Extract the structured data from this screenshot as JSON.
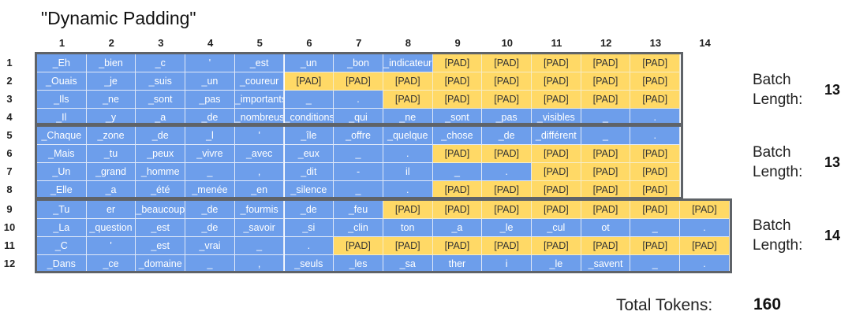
{
  "title": "\"Dynamic Padding\"",
  "column_numbers": [
    "1",
    "2",
    "3",
    "4",
    "5",
    "6",
    "7",
    "8",
    "9",
    "10",
    "11",
    "12",
    "13",
    "14"
  ],
  "row_numbers": [
    "1",
    "2",
    "3",
    "4",
    "5",
    "6",
    "7",
    "8",
    "9",
    "10",
    "11",
    "12"
  ],
  "rows": [
    [
      "_Eh",
      "_bien",
      "_c",
      "'",
      "_est",
      "_un",
      "_bon",
      "_indicateur",
      "[PAD]",
      "[PAD]",
      "[PAD]",
      "[PAD]",
      "[PAD]"
    ],
    [
      "_Ouais",
      "_je",
      "_suis",
      "_un",
      "_coureur",
      "[PAD]",
      "[PAD]",
      "[PAD]",
      "[PAD]",
      "[PAD]",
      "[PAD]",
      "[PAD]",
      "[PAD]"
    ],
    [
      "_Ils",
      "_ne",
      "_sont",
      "_pas",
      "_importants",
      "_",
      ".",
      "[PAD]",
      "[PAD]",
      "[PAD]",
      "[PAD]",
      "[PAD]",
      "[PAD]"
    ],
    [
      "_Il",
      "_y",
      "_a",
      "_de",
      "_nombreuses",
      "_conditions",
      "_qui",
      "_ne",
      "_sont",
      "_pas",
      "_visibles",
      "_",
      "."
    ],
    [
      "_Chaque",
      "_zone",
      "_de",
      "_l",
      "'",
      "_île",
      "_offre",
      "_quelque",
      "_chose",
      "_de",
      "_différent",
      "_",
      "."
    ],
    [
      "_Mais",
      "_tu",
      "_peux",
      "_vivre",
      "_avec",
      "_eux",
      "_",
      ".",
      "[PAD]",
      "[PAD]",
      "[PAD]",
      "[PAD]",
      "[PAD]"
    ],
    [
      "_Un",
      "_grand",
      "_homme",
      "_",
      ",",
      "_dit",
      "-",
      "il",
      "_",
      ".",
      "[PAD]",
      "[PAD]",
      "[PAD]"
    ],
    [
      "_Elle",
      "_a",
      "_été",
      "_menée",
      "_en",
      "_silence",
      "_",
      ".",
      "[PAD]",
      "[PAD]",
      "[PAD]",
      "[PAD]",
      "[PAD]"
    ],
    [
      "_Tu",
      "er",
      "_beaucoup",
      "_de",
      "_fourmis",
      "_de",
      "_feu",
      "[PAD]",
      "[PAD]",
      "[PAD]",
      "[PAD]",
      "[PAD]",
      "[PAD]",
      "[PAD]"
    ],
    [
      "_La",
      "_question",
      "_est",
      "_de",
      "_savoir",
      "_si",
      "_clin",
      "ton",
      "_a",
      "_le",
      "_cul",
      "ot",
      "_",
      "."
    ],
    [
      "_C",
      "'",
      "_est",
      "_vrai",
      "_",
      ".",
      "[PAD]",
      "[PAD]",
      "[PAD]",
      "[PAD]",
      "[PAD]",
      "[PAD]",
      "[PAD]",
      "[PAD]"
    ],
    [
      "_Dans",
      "_ce",
      "_domaine",
      "_",
      ",",
      "_seuls",
      "_les",
      "_sa",
      "ther",
      "i",
      "_le",
      "_savent",
      "_",
      "."
    ]
  ],
  "batches": [
    {
      "label_line1": "Batch",
      "label_line2": "Length:",
      "length": "13"
    },
    {
      "label_line1": "Batch",
      "label_line2": "Length:",
      "length": "13"
    },
    {
      "label_line1": "Batch",
      "label_line2": "Length:",
      "length": "14"
    }
  ],
  "total_label": "Total Tokens:",
  "total_value": "160",
  "colors": {
    "token": "#6d9eeb",
    "pad": "#ffd966",
    "border": "#5f6368"
  }
}
